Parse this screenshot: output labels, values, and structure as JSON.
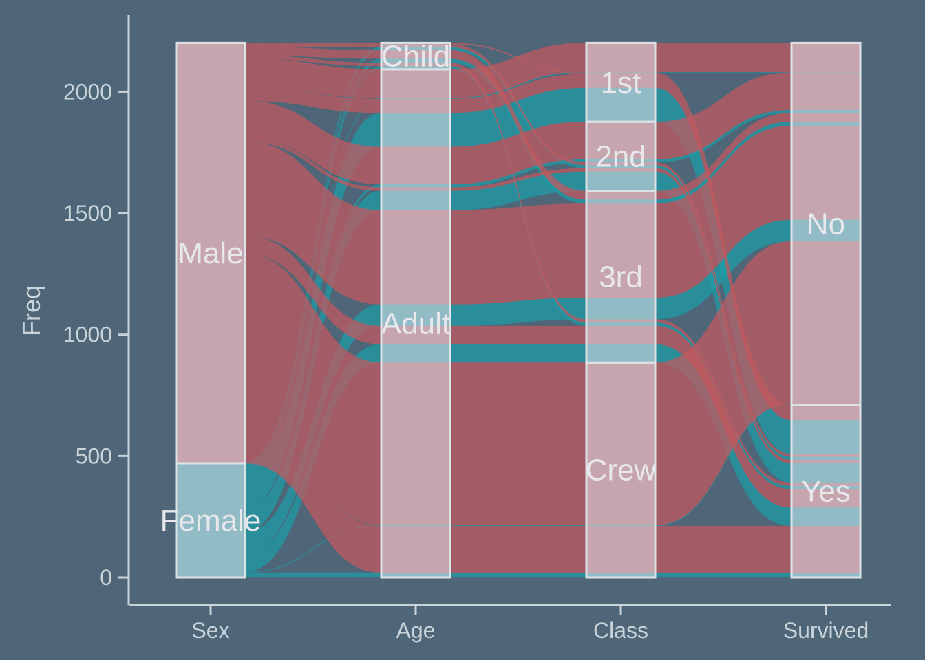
{
  "chart_data": {
    "type": "alluvial",
    "title": "",
    "ylabel": "Freq",
    "xlabel": "",
    "axes": [
      "Sex",
      "Age",
      "Class",
      "Survived"
    ],
    "yticks": [
      0,
      500,
      1000,
      1500,
      2000
    ],
    "ylim": [
      -100,
      2300
    ],
    "grid": false,
    "legend": "none",
    "strata": {
      "Sex": [
        {
          "label": "Female",
          "value": 470
        },
        {
          "label": "Male",
          "value": 1731
        }
      ],
      "Age": [
        {
          "label": "Adult",
          "value": 2092
        },
        {
          "label": "Child",
          "value": 109
        }
      ],
      "Class": [
        {
          "label": "Crew",
          "value": 885
        },
        {
          "label": "3rd",
          "value": 706
        },
        {
          "label": "2nd",
          "value": 285
        },
        {
          "label": "1st",
          "value": 325
        }
      ],
      "Survived": [
        {
          "label": "Yes",
          "value": 711
        },
        {
          "label": "No",
          "value": 1490
        }
      ]
    },
    "flows": [
      {
        "Sex": "Female",
        "Age": "Child",
        "Class": "1st",
        "Survived": "Yes",
        "value": 1
      },
      {
        "Sex": "Female",
        "Age": "Child",
        "Class": "2nd",
        "Survived": "Yes",
        "value": 13
      },
      {
        "Sex": "Female",
        "Age": "Child",
        "Class": "3rd",
        "Survived": "No",
        "value": 17
      },
      {
        "Sex": "Female",
        "Age": "Child",
        "Class": "3rd",
        "Survived": "Yes",
        "value": 14
      },
      {
        "Sex": "Female",
        "Age": "Adult",
        "Class": "1st",
        "Survived": "No",
        "value": 4
      },
      {
        "Sex": "Female",
        "Age": "Adult",
        "Class": "1st",
        "Survived": "Yes",
        "value": 140
      },
      {
        "Sex": "Female",
        "Age": "Adult",
        "Class": "2nd",
        "Survived": "No",
        "value": 13
      },
      {
        "Sex": "Female",
        "Age": "Adult",
        "Class": "2nd",
        "Survived": "Yes",
        "value": 80
      },
      {
        "Sex": "Female",
        "Age": "Adult",
        "Class": "3rd",
        "Survived": "No",
        "value": 89
      },
      {
        "Sex": "Female",
        "Age": "Adult",
        "Class": "3rd",
        "Survived": "Yes",
        "value": 76
      },
      {
        "Sex": "Female",
        "Age": "Adult",
        "Class": "Crew",
        "Survived": "No",
        "value": 3
      },
      {
        "Sex": "Female",
        "Age": "Adult",
        "Class": "Crew",
        "Survived": "Yes",
        "value": 20
      },
      {
        "Sex": "Male",
        "Age": "Child",
        "Class": "1st",
        "Survived": "Yes",
        "value": 5
      },
      {
        "Sex": "Male",
        "Age": "Child",
        "Class": "2nd",
        "Survived": "Yes",
        "value": 11
      },
      {
        "Sex": "Male",
        "Age": "Child",
        "Class": "3rd",
        "Survived": "No",
        "value": 35
      },
      {
        "Sex": "Male",
        "Age": "Child",
        "Class": "3rd",
        "Survived": "Yes",
        "value": 13
      },
      {
        "Sex": "Male",
        "Age": "Adult",
        "Class": "1st",
        "Survived": "No",
        "value": 118
      },
      {
        "Sex": "Male",
        "Age": "Adult",
        "Class": "1st",
        "Survived": "Yes",
        "value": 57
      },
      {
        "Sex": "Male",
        "Age": "Adult",
        "Class": "2nd",
        "Survived": "No",
        "value": 154
      },
      {
        "Sex": "Male",
        "Age": "Adult",
        "Class": "2nd",
        "Survived": "Yes",
        "value": 14
      },
      {
        "Sex": "Male",
        "Age": "Adult",
        "Class": "3rd",
        "Survived": "No",
        "value": 387
      },
      {
        "Sex": "Male",
        "Age": "Adult",
        "Class": "3rd",
        "Survived": "Yes",
        "value": 75
      },
      {
        "Sex": "Male",
        "Age": "Adult",
        "Class": "Crew",
        "Survived": "No",
        "value": 670
      },
      {
        "Sex": "Male",
        "Age": "Adult",
        "Class": "Crew",
        "Survived": "Yes",
        "value": 192
      }
    ],
    "fill_by": "Sex",
    "colors": {
      "Female": "#1f9ba6",
      "Male": "#c05a60",
      "background": "#4e6677",
      "stratum_fill": "#e6e2ea",
      "stratum_border": "#dde2e6",
      "axis": "#c9d3da"
    }
  }
}
